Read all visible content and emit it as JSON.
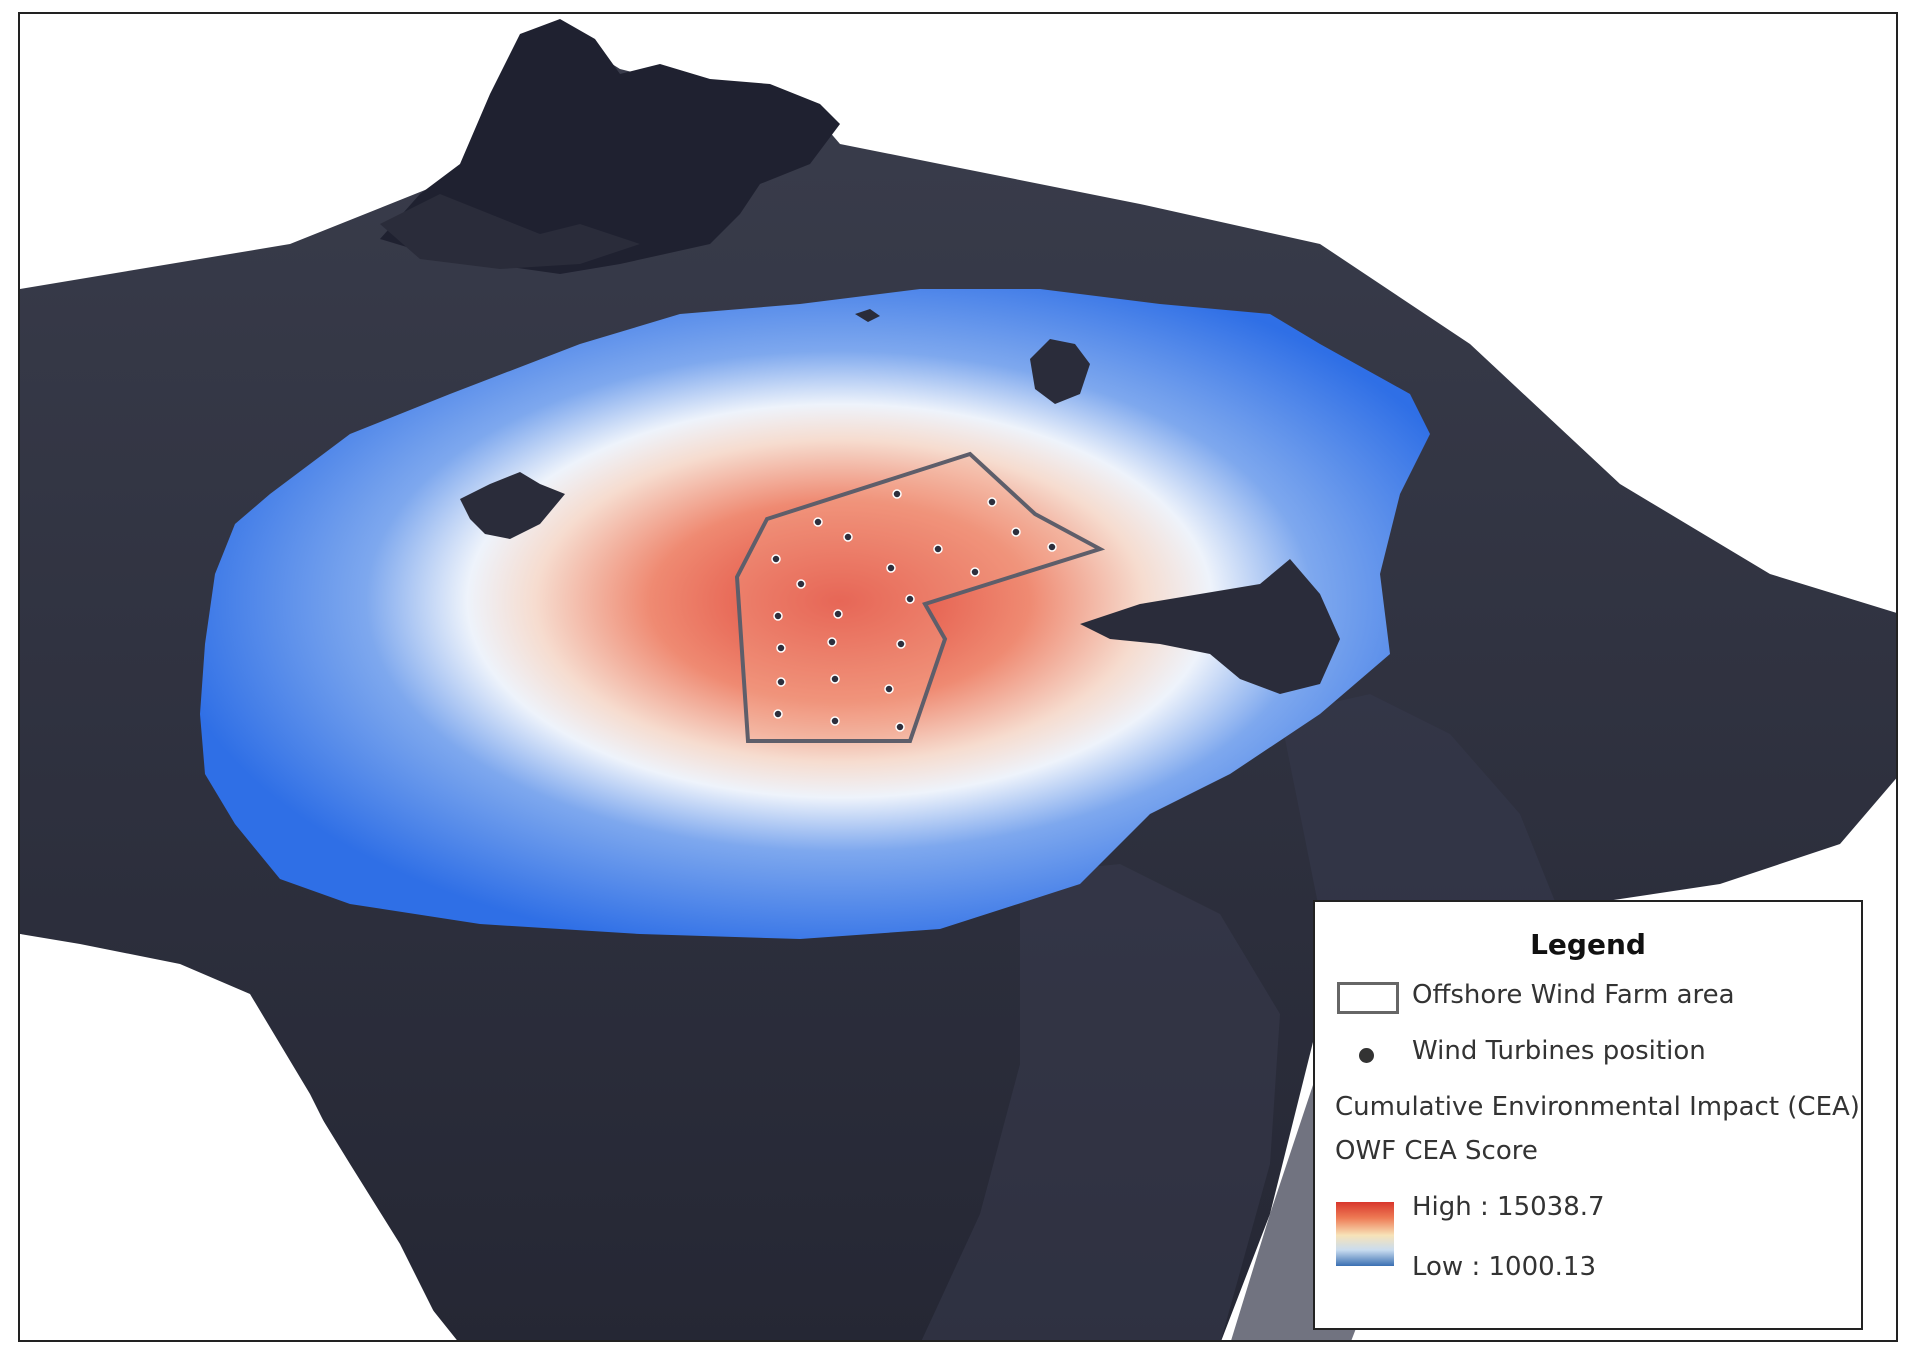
{
  "legend": {
    "title": "Legend",
    "items": [
      {
        "label": "Offshore Wind Farm area",
        "symbol": "polygon-outline",
        "color": "#666666"
      },
      {
        "label": "Wind Turbines position",
        "symbol": "dot",
        "color": "#333333"
      }
    ],
    "layer_title": "Cumulative Environmental Impact (CEA)",
    "field_name": "OWF CEA Score",
    "ramp": {
      "high_label": "High : 15038.7",
      "low_label": "Low : 1000.13",
      "colors": [
        "#d8362c",
        "#ee7b55",
        "#f7e3b8",
        "#c9dcef",
        "#3a6fb2"
      ]
    }
  },
  "map": {
    "terrain_color": "#2d2f3d",
    "impact_low_color": "#2f6fe6",
    "impact_mid_color": "#f2f4f8",
    "impact_high_color": "#e0453a"
  }
}
